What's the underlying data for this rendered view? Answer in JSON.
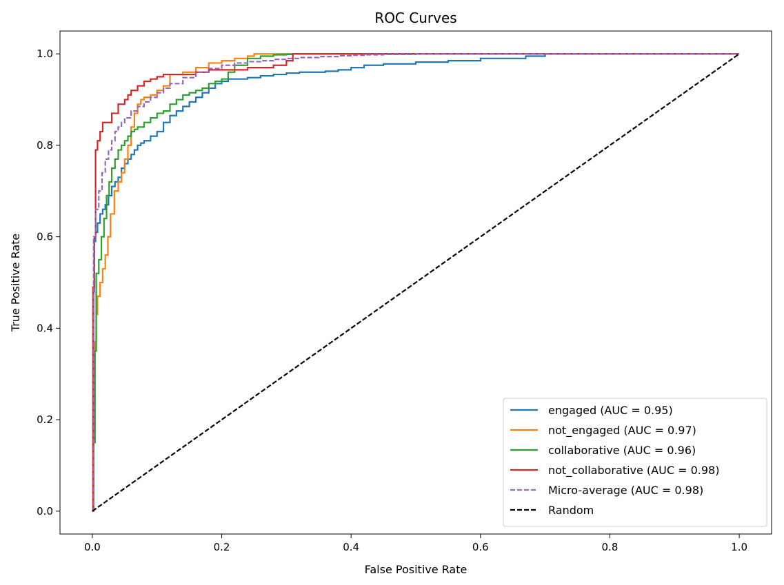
{
  "chart_data": {
    "type": "line",
    "title": "ROC Curves",
    "xlabel": "False Positive Rate",
    "ylabel": "True Positive Rate",
    "xlim": [
      -0.05,
      1.05
    ],
    "ylim": [
      -0.05,
      1.05
    ],
    "xticks": [
      0.0,
      0.2,
      0.4,
      0.6,
      0.8,
      1.0
    ],
    "yticks": [
      0.0,
      0.2,
      0.4,
      0.6,
      0.8,
      1.0
    ],
    "xtick_labels": [
      "0.0",
      "0.2",
      "0.4",
      "0.6",
      "0.8",
      "1.0"
    ],
    "ytick_labels": [
      "0.0",
      "0.2",
      "0.4",
      "0.6",
      "0.8",
      "1.0"
    ],
    "grid": false,
    "legend_position": "lower-right",
    "series": [
      {
        "name": "engaged (AUC = 0.95)",
        "color": "#1f77b4",
        "dash": "solid",
        "fpr": [
          0.0,
          0.002,
          0.003,
          0.005,
          0.008,
          0.012,
          0.016,
          0.02,
          0.025,
          0.03,
          0.035,
          0.04,
          0.045,
          0.05,
          0.055,
          0.06,
          0.065,
          0.07,
          0.075,
          0.08,
          0.09,
          0.1,
          0.11,
          0.12,
          0.13,
          0.14,
          0.15,
          0.16,
          0.17,
          0.18,
          0.19,
          0.2,
          0.21,
          0.22,
          0.24,
          0.26,
          0.28,
          0.3,
          0.32,
          0.34,
          0.36,
          0.38,
          0.4,
          0.42,
          0.45,
          0.5,
          0.55,
          0.6,
          0.65,
          0.67,
          0.7,
          1.0
        ],
        "tpr": [
          0.0,
          0.48,
          0.59,
          0.61,
          0.63,
          0.65,
          0.66,
          0.67,
          0.69,
          0.71,
          0.72,
          0.73,
          0.75,
          0.76,
          0.77,
          0.78,
          0.79,
          0.8,
          0.805,
          0.81,
          0.82,
          0.83,
          0.85,
          0.865,
          0.875,
          0.885,
          0.895,
          0.905,
          0.915,
          0.925,
          0.935,
          0.94,
          0.945,
          0.945,
          0.948,
          0.952,
          0.955,
          0.958,
          0.96,
          0.96,
          0.962,
          0.965,
          0.97,
          0.975,
          0.978,
          0.982,
          0.985,
          0.99,
          0.99,
          0.995,
          1.0,
          1.0
        ]
      },
      {
        "name": "not_engaged (AUC = 0.97)",
        "color": "#ff7f0e",
        "dash": "solid",
        "fpr": [
          0.0,
          0.002,
          0.004,
          0.006,
          0.008,
          0.012,
          0.016,
          0.02,
          0.024,
          0.028,
          0.034,
          0.04,
          0.045,
          0.05,
          0.055,
          0.06,
          0.065,
          0.07,
          0.075,
          0.08,
          0.09,
          0.1,
          0.11,
          0.12,
          0.14,
          0.16,
          0.18,
          0.2,
          0.22,
          0.24,
          0.25,
          0.3,
          1.0
        ],
        "tpr": [
          0.0,
          0.15,
          0.37,
          0.43,
          0.47,
          0.5,
          0.53,
          0.56,
          0.6,
          0.65,
          0.7,
          0.72,
          0.74,
          0.77,
          0.8,
          0.84,
          0.87,
          0.89,
          0.9,
          0.905,
          0.91,
          0.92,
          0.93,
          0.955,
          0.96,
          0.97,
          0.98,
          0.985,
          0.99,
          0.995,
          1.0,
          1.0,
          1.0
        ]
      },
      {
        "name": "collaborative (AUC = 0.96)",
        "color": "#2ca02c",
        "dash": "solid",
        "fpr": [
          0.0,
          0.002,
          0.004,
          0.006,
          0.01,
          0.014,
          0.018,
          0.022,
          0.026,
          0.03,
          0.035,
          0.04,
          0.045,
          0.05,
          0.055,
          0.06,
          0.065,
          0.07,
          0.08,
          0.09,
          0.1,
          0.11,
          0.12,
          0.13,
          0.14,
          0.15,
          0.16,
          0.17,
          0.18,
          0.19,
          0.2,
          0.21,
          0.22,
          0.24,
          0.26,
          0.28,
          0.3,
          0.31,
          1.0
        ],
        "tpr": [
          0.0,
          0.15,
          0.35,
          0.52,
          0.55,
          0.6,
          0.64,
          0.69,
          0.72,
          0.75,
          0.77,
          0.79,
          0.8,
          0.81,
          0.82,
          0.83,
          0.835,
          0.84,
          0.85,
          0.86,
          0.87,
          0.875,
          0.89,
          0.9,
          0.91,
          0.915,
          0.92,
          0.925,
          0.935,
          0.94,
          0.945,
          0.96,
          0.975,
          0.99,
          0.995,
          0.998,
          0.999,
          1.0,
          1.0
        ]
      },
      {
        "name": "not_collaborative (AUC = 0.98)",
        "color": "#d62728",
        "dash": "solid",
        "fpr": [
          0.0,
          0.001,
          0.003,
          0.005,
          0.008,
          0.012,
          0.016,
          0.02,
          0.03,
          0.04,
          0.05,
          0.055,
          0.06,
          0.07,
          0.08,
          0.09,
          0.1,
          0.11,
          0.12,
          0.13,
          0.14,
          0.16,
          0.18,
          0.2,
          0.22,
          0.24,
          0.26,
          0.28,
          0.3,
          0.31,
          1.0
        ],
        "tpr": [
          0.0,
          0.49,
          0.6,
          0.79,
          0.81,
          0.83,
          0.85,
          0.85,
          0.87,
          0.89,
          0.9,
          0.91,
          0.92,
          0.93,
          0.94,
          0.945,
          0.95,
          0.955,
          0.955,
          0.955,
          0.955,
          0.96,
          0.965,
          0.965,
          0.965,
          0.97,
          0.97,
          0.975,
          0.985,
          1.0,
          1.0
        ]
      },
      {
        "name": "Micro-average (AUC = 0.98)",
        "color": "#9467bd",
        "dash": "dashed",
        "fpr": [
          0.0,
          0.002,
          0.005,
          0.01,
          0.015,
          0.02,
          0.025,
          0.03,
          0.035,
          0.04,
          0.045,
          0.05,
          0.06,
          0.07,
          0.08,
          0.09,
          0.1,
          0.11,
          0.12,
          0.14,
          0.16,
          0.18,
          0.2,
          0.22,
          0.24,
          0.26,
          0.28,
          0.3,
          0.32,
          0.35,
          0.38,
          0.4,
          0.42,
          0.45,
          0.5,
          1.0
        ],
        "tpr": [
          0.0,
          0.6,
          0.66,
          0.7,
          0.74,
          0.77,
          0.79,
          0.81,
          0.83,
          0.84,
          0.85,
          0.86,
          0.875,
          0.885,
          0.895,
          0.905,
          0.915,
          0.925,
          0.935,
          0.948,
          0.96,
          0.968,
          0.975,
          0.98,
          0.983,
          0.985,
          0.988,
          0.99,
          0.992,
          0.994,
          0.996,
          0.997,
          0.998,
          0.999,
          1.0,
          1.0
        ]
      },
      {
        "name": "Random",
        "color": "#000000",
        "dash": "dashed",
        "fpr": [
          0.0,
          1.0
        ],
        "tpr": [
          0.0,
          1.0
        ]
      }
    ]
  }
}
